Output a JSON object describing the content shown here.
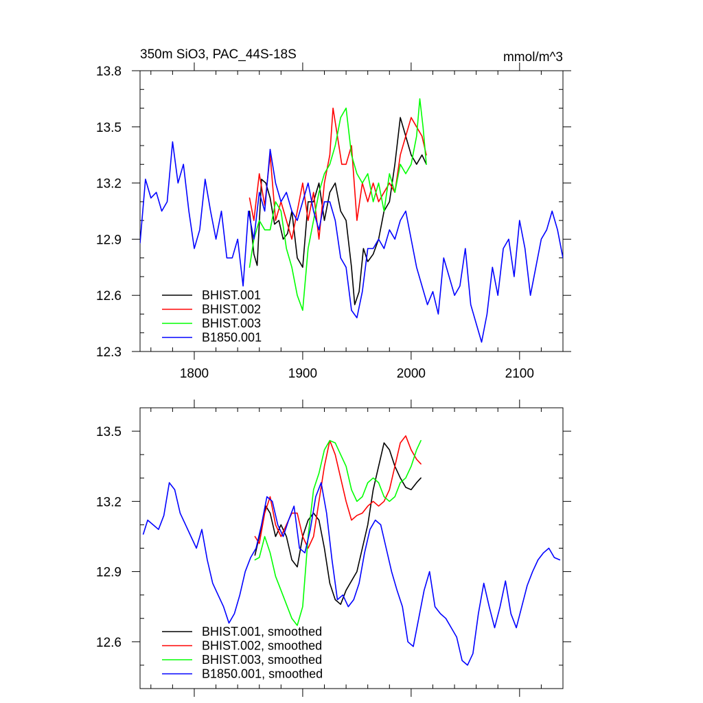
{
  "chart_data": [
    {
      "type": "line",
      "title": "350m SiO3, PAC_44S-18S",
      "units": "mmol/m^3",
      "xlim": [
        1750,
        2140
      ],
      "ylim": [
        12.3,
        13.8
      ],
      "xticks": [
        1800,
        1900,
        2000,
        2100
      ],
      "xticklabels": [
        "1800",
        "1900",
        "2000",
        "2100"
      ],
      "yticks": [
        12.3,
        12.6,
        12.9,
        13.2,
        13.5,
        13.8
      ],
      "yticklabels": [
        "12.3",
        "12.6",
        "12.9",
        "13.2",
        "13.5",
        "13.8"
      ],
      "show_xlabels": true,
      "series": [
        {
          "name": "BHIST.001",
          "color": "#000000",
          "x": [
            1851,
            1855,
            1858,
            1862,
            1866,
            1870,
            1874,
            1878,
            1882,
            1886,
            1890,
            1895,
            1900,
            1905,
            1910,
            1915,
            1920,
            1925,
            1930,
            1935,
            1940,
            1945,
            1948,
            1952,
            1956,
            1960,
            1965,
            1970,
            1975,
            1980,
            1985,
            1990,
            1995,
            2000,
            2005,
            2010,
            2014
          ],
          "y": [
            13.05,
            12.82,
            12.76,
            13.22,
            13.2,
            13.12,
            12.98,
            13.0,
            12.9,
            12.93,
            13.05,
            12.8,
            12.75,
            13.1,
            13.1,
            13.2,
            13.0,
            13.15,
            13.2,
            13.05,
            13.0,
            12.75,
            12.55,
            12.62,
            12.85,
            12.78,
            12.82,
            12.9,
            13.05,
            13.1,
            13.3,
            13.55,
            13.45,
            13.35,
            13.3,
            13.35,
            13.3
          ]
        },
        {
          "name": "BHIST.002",
          "color": "#ff0000",
          "x": [
            1851,
            1855,
            1860,
            1865,
            1870,
            1875,
            1880,
            1885,
            1890,
            1895,
            1900,
            1905,
            1910,
            1915,
            1920,
            1925,
            1928,
            1932,
            1936,
            1940,
            1945,
            1950,
            1955,
            1960,
            1965,
            1970,
            1975,
            1980,
            1985,
            1990,
            1995,
            2000,
            2005,
            2010,
            2014
          ],
          "y": [
            13.12,
            13.0,
            13.25,
            13.08,
            13.35,
            13.0,
            13.1,
            13.0,
            12.9,
            13.05,
            13.2,
            13.0,
            13.15,
            12.9,
            13.2,
            13.35,
            13.6,
            13.45,
            13.3,
            13.3,
            13.4,
            13.0,
            13.2,
            13.1,
            13.2,
            13.1,
            13.15,
            13.2,
            13.15,
            13.35,
            13.45,
            13.55,
            13.5,
            13.45,
            13.35
          ]
        },
        {
          "name": "BHIST.003",
          "color": "#00ff00",
          "x": [
            1851,
            1855,
            1860,
            1865,
            1870,
            1875,
            1880,
            1885,
            1890,
            1895,
            1900,
            1905,
            1910,
            1915,
            1920,
            1925,
            1930,
            1935,
            1940,
            1945,
            1950,
            1955,
            1960,
            1965,
            1970,
            1975,
            1980,
            1985,
            1990,
            1995,
            2000,
            2005,
            2008,
            2011,
            2014
          ],
          "y": [
            12.75,
            12.9,
            13.0,
            12.95,
            12.95,
            13.1,
            13.05,
            12.85,
            12.75,
            12.6,
            12.52,
            12.85,
            13.0,
            13.15,
            13.25,
            13.3,
            13.4,
            13.55,
            13.6,
            13.35,
            13.25,
            13.2,
            13.25,
            13.1,
            13.2,
            13.05,
            13.25,
            13.15,
            13.3,
            13.25,
            13.3,
            13.45,
            13.65,
            13.5,
            13.3
          ]
        },
        {
          "name": "B1850.001",
          "color": "#0000ff",
          "x": [
            1750,
            1755,
            1760,
            1765,
            1770,
            1775,
            1780,
            1785,
            1790,
            1795,
            1800,
            1805,
            1810,
            1815,
            1820,
            1825,
            1830,
            1835,
            1840,
            1845,
            1850,
            1855,
            1860,
            1865,
            1870,
            1875,
            1880,
            1885,
            1890,
            1895,
            1900,
            1905,
            1910,
            1915,
            1920,
            1925,
            1930,
            1935,
            1940,
            1945,
            1950,
            1955,
            1960,
            1965,
            1970,
            1975,
            1980,
            1985,
            1990,
            1995,
            2000,
            2005,
            2010,
            2015,
            2020,
            2025,
            2030,
            2035,
            2040,
            2045,
            2050,
            2055,
            2060,
            2065,
            2070,
            2075,
            2080,
            2085,
            2090,
            2095,
            2100,
            2105,
            2110,
            2115,
            2120,
            2125,
            2130,
            2135,
            2140
          ],
          "y": [
            12.88,
            13.22,
            13.12,
            13.15,
            13.05,
            13.1,
            13.42,
            13.2,
            13.3,
            13.05,
            12.85,
            12.95,
            13.22,
            13.05,
            12.9,
            13.05,
            12.8,
            12.8,
            12.9,
            12.65,
            13.05,
            12.9,
            13.15,
            13.05,
            13.38,
            13.2,
            13.1,
            13.15,
            13.05,
            13.0,
            13.1,
            13.2,
            13.05,
            12.95,
            13.1,
            13.1,
            13.0,
            12.8,
            12.75,
            12.52,
            12.48,
            12.62,
            12.85,
            12.85,
            12.9,
            12.85,
            12.95,
            12.9,
            13.0,
            13.05,
            12.9,
            12.75,
            12.65,
            12.55,
            12.62,
            12.5,
            12.8,
            12.7,
            12.6,
            12.65,
            12.85,
            12.55,
            12.45,
            12.35,
            12.5,
            12.75,
            12.6,
            12.85,
            12.9,
            12.7,
            13.0,
            12.85,
            12.6,
            12.75,
            12.9,
            12.95,
            13.05,
            12.95,
            12.8
          ]
        }
      ]
    },
    {
      "type": "line",
      "title": "",
      "xlim": [
        1750,
        2140
      ],
      "ylim": [
        12.4,
        13.6
      ],
      "xticks": [
        1800,
        1900,
        2000,
        2100
      ],
      "xticklabels": [],
      "yticks": [
        12.6,
        12.9,
        13.2,
        13.5
      ],
      "yticklabels": [
        "12.6",
        "12.9",
        "13.2",
        "13.5"
      ],
      "show_xlabels": false,
      "series": [
        {
          "name": "BHIST.001, smoothed",
          "color": "#000000",
          "x": [
            1856,
            1860,
            1866,
            1870,
            1875,
            1880,
            1885,
            1890,
            1895,
            1900,
            1905,
            1910,
            1915,
            1920,
            1925,
            1930,
            1935,
            1940,
            1945,
            1950,
            1955,
            1960,
            1965,
            1970,
            1975,
            1980,
            1985,
            1990,
            1995,
            2000,
            2005,
            2009
          ],
          "y": [
            12.97,
            13.05,
            13.18,
            13.15,
            13.05,
            13.1,
            13.05,
            12.95,
            12.92,
            13.05,
            13.12,
            13.15,
            13.12,
            13.0,
            12.85,
            12.78,
            12.76,
            12.82,
            12.86,
            12.9,
            13.0,
            13.1,
            13.25,
            13.35,
            13.45,
            13.42,
            13.35,
            13.3,
            13.26,
            13.25,
            13.28,
            13.3
          ]
        },
        {
          "name": "BHIST.002, smoothed",
          "color": "#ff0000",
          "x": [
            1856,
            1860,
            1865,
            1870,
            1875,
            1880,
            1885,
            1890,
            1895,
            1900,
            1905,
            1910,
            1915,
            1920,
            1925,
            1930,
            1935,
            1940,
            1945,
            1950,
            1955,
            1960,
            1965,
            1970,
            1975,
            1980,
            1985,
            1990,
            1995,
            2000,
            2005,
            2009
          ],
          "y": [
            13.05,
            13.02,
            13.15,
            13.22,
            13.1,
            13.05,
            13.1,
            13.15,
            13.15,
            13.05,
            13.0,
            13.05,
            13.2,
            13.35,
            13.46,
            13.4,
            13.3,
            13.2,
            13.12,
            13.14,
            13.15,
            13.18,
            13.2,
            13.18,
            13.2,
            13.25,
            13.35,
            13.45,
            13.48,
            13.42,
            13.38,
            13.36
          ]
        },
        {
          "name": "BHIST.003, smoothed",
          "color": "#00ff00",
          "x": [
            1856,
            1860,
            1865,
            1870,
            1875,
            1880,
            1885,
            1890,
            1895,
            1900,
            1905,
            1910,
            1915,
            1920,
            1925,
            1930,
            1935,
            1940,
            1945,
            1950,
            1955,
            1960,
            1965,
            1970,
            1975,
            1980,
            1985,
            1990,
            1995,
            2000,
            2005,
            2009
          ],
          "y": [
            12.95,
            12.96,
            13.05,
            12.98,
            12.88,
            12.82,
            12.76,
            12.7,
            12.67,
            12.75,
            13.05,
            13.25,
            13.32,
            13.42,
            13.46,
            13.45,
            13.4,
            13.35,
            13.25,
            13.2,
            13.22,
            13.28,
            13.3,
            13.28,
            13.22,
            13.2,
            13.22,
            13.28,
            13.3,
            13.35,
            13.42,
            13.46
          ]
        },
        {
          "name": "B1850.001, smoothed",
          "color": "#0000ff",
          "x": [
            1753,
            1757,
            1762,
            1767,
            1772,
            1777,
            1782,
            1787,
            1792,
            1797,
            1802,
            1807,
            1812,
            1817,
            1822,
            1827,
            1832,
            1837,
            1842,
            1847,
            1852,
            1857,
            1862,
            1867,
            1872,
            1877,
            1882,
            1887,
            1892,
            1897,
            1902,
            1907,
            1912,
            1917,
            1922,
            1927,
            1932,
            1937,
            1942,
            1947,
            1952,
            1957,
            1962,
            1967,
            1972,
            1977,
            1982,
            1987,
            1992,
            1997,
            2002,
            2007,
            2012,
            2017,
            2022,
            2027,
            2032,
            2037,
            2042,
            2047,
            2052,
            2057,
            2062,
            2067,
            2072,
            2077,
            2082,
            2087,
            2092,
            2097,
            2102,
            2107,
            2112,
            2117,
            2122,
            2127,
            2132,
            2137
          ],
          "y": [
            13.06,
            13.12,
            13.1,
            13.08,
            13.14,
            13.28,
            13.25,
            13.15,
            13.1,
            13.05,
            13.0,
            13.08,
            12.95,
            12.85,
            12.8,
            12.75,
            12.68,
            12.72,
            12.8,
            12.9,
            12.96,
            13.0,
            13.1,
            13.22,
            13.2,
            13.1,
            13.05,
            13.12,
            13.18,
            13.0,
            12.98,
            13.08,
            13.22,
            13.28,
            13.15,
            12.95,
            12.78,
            12.8,
            12.75,
            12.78,
            12.85,
            12.98,
            13.08,
            13.12,
            13.1,
            13.0,
            12.9,
            12.82,
            12.75,
            12.6,
            12.58,
            12.7,
            12.82,
            12.9,
            12.75,
            12.72,
            12.7,
            12.66,
            12.62,
            12.52,
            12.5,
            12.55,
            12.72,
            12.85,
            12.75,
            12.66,
            12.75,
            12.86,
            12.72,
            12.66,
            12.75,
            12.84,
            12.9,
            12.95,
            12.98,
            13.0,
            12.96,
            12.95
          ]
        }
      ]
    }
  ]
}
